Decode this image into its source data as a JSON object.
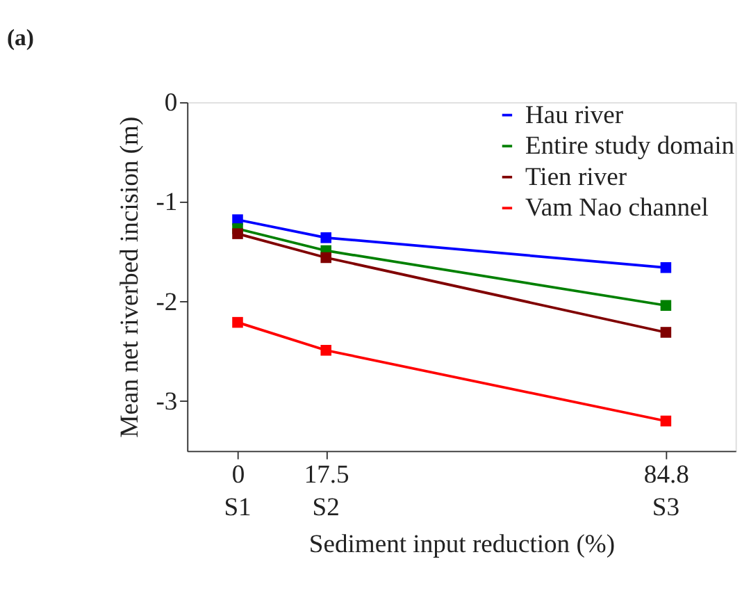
{
  "chart_data": {
    "type": "line",
    "title": "(a)",
    "xlabel": "Sediment input reduction (%)",
    "ylabel": "Mean net riverbed incision (m)",
    "x": [
      0,
      17.5,
      84.8
    ],
    "series": [
      {
        "name": "Hau river",
        "color": "#0000ff",
        "values": [
          -1.18,
          -1.36,
          -1.66
        ]
      },
      {
        "name": "Entire study domain",
        "color": "#008000",
        "values": [
          -1.27,
          -1.49,
          -2.04
        ]
      },
      {
        "name": "Tien river",
        "color": "#800000",
        "values": [
          -1.32,
          -1.56,
          -2.31
        ]
      },
      {
        "name": "Vam Nao channel",
        "color": "#ff0000",
        "values": [
          -2.21,
          -2.49,
          -3.2
        ]
      }
    ],
    "xlim": [
      -10,
      98.6
    ],
    "xticks": [
      0,
      17.5,
      84.8
    ],
    "annotations": [
      "S1",
      "S2",
      "S3"
    ],
    "ylim": [
      -3.5,
      0
    ],
    "yticks": [
      -3,
      -2,
      -1,
      0
    ],
    "marker": "square",
    "line_style": "solid",
    "legend": "top right",
    "grid": false
  }
}
